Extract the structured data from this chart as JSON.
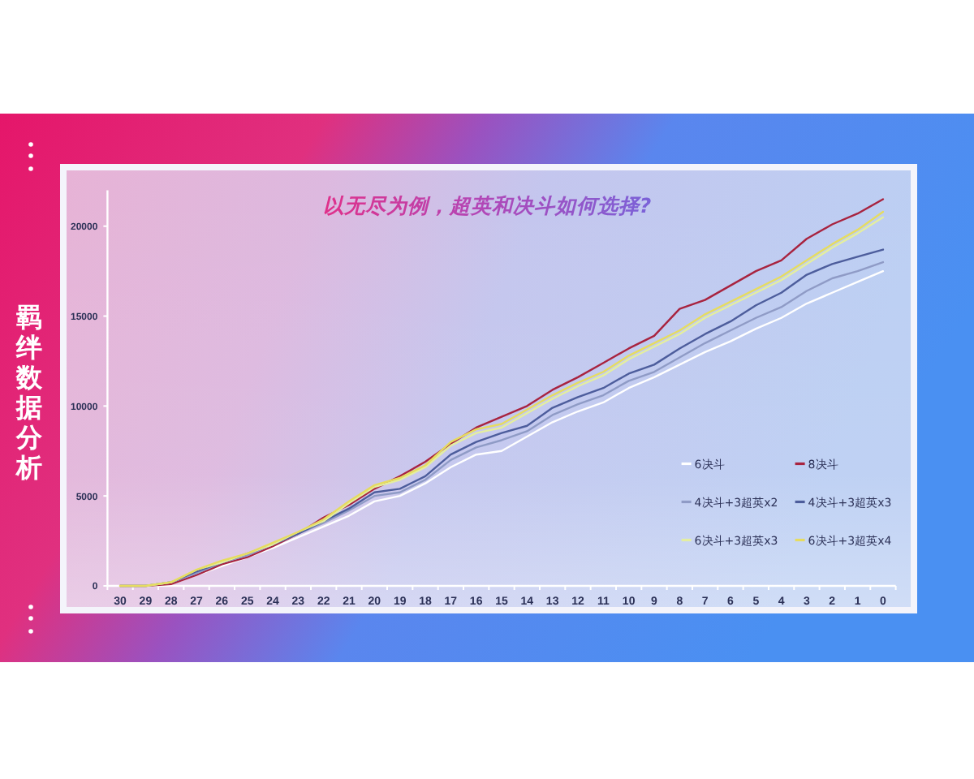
{
  "chart_data": {
    "type": "line",
    "title": "以无尽为例，超英和决斗如何选择?",
    "subtitle": "羁绊数据分析",
    "categories": [
      "30",
      "29",
      "28",
      "27",
      "26",
      "25",
      "24",
      "23",
      "22",
      "21",
      "20",
      "19",
      "18",
      "17",
      "16",
      "15",
      "14",
      "13",
      "12",
      "11",
      "10",
      "9",
      "8",
      "7",
      "6",
      "5",
      "4",
      "3",
      "2",
      "1",
      "0"
    ],
    "series": [
      {
        "name": "6决斗",
        "color": "#ffffff",
        "values": [
          0,
          0,
          100,
          600,
          1100,
          1600,
          2100,
          2700,
          3300,
          3900,
          4700,
          5000,
          5700,
          6600,
          7300,
          7500,
          8300,
          9100,
          9700,
          10200,
          11000,
          11600,
          12300,
          13000,
          13600,
          14300,
          14900,
          15700,
          16300,
          16900,
          17500
        ]
      },
      {
        "name": "8决斗",
        "color": "#a8233f",
        "values": [
          0,
          0,
          100,
          600,
          1200,
          1600,
          2200,
          2900,
          3800,
          4500,
          5400,
          6100,
          6900,
          7900,
          8800,
          9400,
          10000,
          10900,
          11600,
          12400,
          13200,
          13900,
          15400,
          15900,
          16700,
          17500,
          18100,
          19300,
          20100,
          20700,
          21500
        ]
      },
      {
        "name": "4决斗+3超英x2",
        "color": "#8f9bc6",
        "values": [
          0,
          0,
          200,
          700,
          1300,
          1700,
          2300,
          2900,
          3500,
          4200,
          5000,
          5200,
          5900,
          7000,
          7700,
          8100,
          8600,
          9500,
          10100,
          10600,
          11400,
          11900,
          12700,
          13500,
          14200,
          14900,
          15500,
          16400,
          17100,
          17500,
          18000
        ]
      },
      {
        "name": "4决斗+3超英x3",
        "color": "#4d5d9c",
        "values": [
          0,
          0,
          200,
          800,
          1300,
          1800,
          2300,
          2900,
          3600,
          4300,
          5200,
          5400,
          6100,
          7300,
          8000,
          8500,
          8900,
          9900,
          10500,
          11000,
          11800,
          12300,
          13200,
          14000,
          14700,
          15600,
          16300,
          17300,
          17900,
          18300,
          18700
        ]
      },
      {
        "name": "6决斗+3超英x3",
        "color": "#e4eea0",
        "values": [
          0,
          0,
          200,
          900,
          1300,
          1800,
          2300,
          3000,
          3600,
          4600,
          5500,
          5900,
          6600,
          7800,
          8500,
          8800,
          9600,
          10400,
          11100,
          11700,
          12600,
          13300,
          14000,
          14900,
          15600,
          16300,
          17000,
          17900,
          18800,
          19600,
          20500
        ]
      },
      {
        "name": "6决斗+3超英x4",
        "color": "#e6dc60",
        "values": [
          0,
          0,
          200,
          900,
          1400,
          1800,
          2400,
          3000,
          3700,
          4700,
          5600,
          6000,
          6700,
          8000,
          8700,
          9000,
          9800,
          10600,
          11300,
          11900,
          12800,
          13500,
          14200,
          15100,
          15800,
          16500,
          17200,
          18100,
          19000,
          19800,
          20800
        ]
      }
    ],
    "ylim": [
      0,
      22000
    ],
    "yticks": [
      0,
      5000,
      10000,
      15000,
      20000
    ],
    "legend": "bottom right"
  }
}
